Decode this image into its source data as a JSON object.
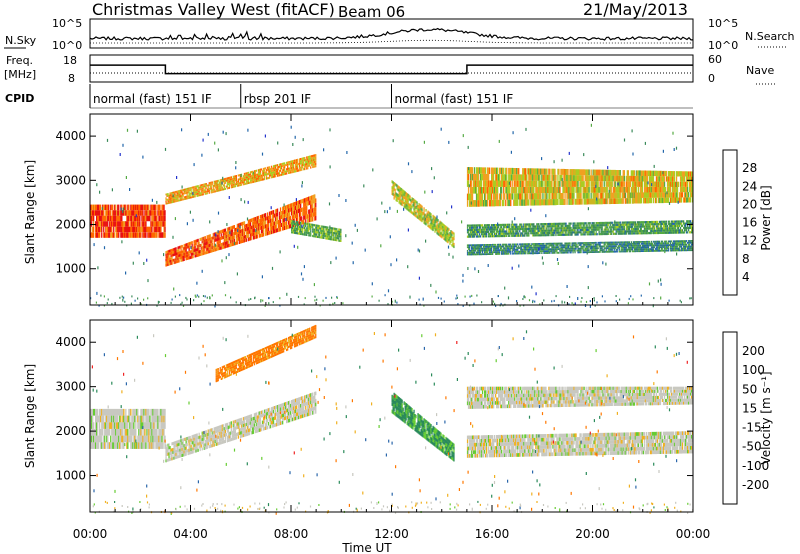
{
  "header": {
    "station": "Christmas Valley West (fitACF)",
    "beam": "Beam 06",
    "date": "21/May/2013"
  },
  "noise_panel": {
    "left_label": "N.Sky",
    "left_ticks": [
      "10^5",
      "10^0"
    ],
    "right_label": "N.Search",
    "right_ticks": [
      "10^5",
      "10^0"
    ]
  },
  "freq_panel": {
    "left_label_1": "Freq.",
    "left_label_2": "[MHz]",
    "left_ticks": [
      "18",
      "8"
    ],
    "right_label": "Nave",
    "right_ticks": [
      "60",
      "0"
    ]
  },
  "cpid": {
    "label": "CPID",
    "segments": [
      {
        "text": "normal (fast) 151 IF",
        "start_h": 0,
        "end_h": 6
      },
      {
        "text": "rbsp 201 IF",
        "start_h": 6,
        "end_h": 12
      },
      {
        "text": "normal (fast) 151 IF",
        "start_h": 12,
        "end_h": 24
      }
    ]
  },
  "power_panel": {
    "ylabel": "Slant Range [km]",
    "yticks": [
      "1000",
      "2000",
      "3000",
      "4000"
    ],
    "colorbar_label": "Power [dB]",
    "colorbar_ticks": [
      "4",
      "8",
      "12",
      "16",
      "20",
      "24",
      "28"
    ],
    "colors": [
      "#2233cc",
      "#2266aa",
      "#3a8a5a",
      "#55aa44",
      "#aacc22",
      "#f0a020",
      "#ff6600",
      "#e81010"
    ]
  },
  "velocity_panel": {
    "ylabel": "Slant Range [km]",
    "yticks": [
      "1000",
      "2000",
      "3000",
      "4000"
    ],
    "colorbar_label": "Velocity [m s⁻¹]",
    "colorbar_ticks": [
      "200",
      "100",
      "50",
      "15",
      "-15",
      "-50",
      "-100",
      "-200"
    ],
    "colors": [
      "#2233bb",
      "#2a66aa",
      "#2a8a5a",
      "#66cc33",
      "#c8c8c0",
      "#f0b020",
      "#ff7700",
      "#ee2222",
      "#cc0000"
    ]
  },
  "xaxis": {
    "label": "Time UT",
    "ticks": [
      "00:00",
      "04:00",
      "08:00",
      "12:00",
      "16:00",
      "20:00",
      "00:00"
    ]
  },
  "chart_data": {
    "type": "heatmap",
    "title": "Christmas Valley West (fitACF) Beam 06 21/May/2013",
    "xlabel": "Time UT",
    "ylabel": "Slant Range [km]",
    "xlim_hours": [
      0,
      24
    ],
    "ylim_km": [
      180,
      4500
    ],
    "frequency_mhz": [
      {
        "from_h": 0,
        "to_h": 3,
        "value": 15
      },
      {
        "from_h": 3,
        "to_h": 15,
        "value": 10
      },
      {
        "from_h": 15,
        "to_h": 24,
        "value": 15
      }
    ],
    "power_bands": [
      {
        "t": [
          0,
          3
        ],
        "r0": [
          1700,
          1700
        ],
        "r1": [
          2450,
          2450
        ],
        "db": 28
      },
      {
        "t": [
          3,
          9
        ],
        "r0": [
          1050,
          2100
        ],
        "r1": [
          1400,
          2700
        ],
        "db": 26
      },
      {
        "t": [
          3,
          9
        ],
        "r0": [
          2450,
          3300
        ],
        "r1": [
          2700,
          3600
        ],
        "db": 22
      },
      {
        "t": [
          8,
          10
        ],
        "r0": [
          1800,
          1600
        ],
        "r1": [
          2100,
          1900
        ],
        "db": 14
      },
      {
        "t": [
          12,
          14.5
        ],
        "r0": [
          2600,
          1450
        ],
        "r1": [
          3000,
          1800
        ],
        "db": 18
      },
      {
        "t": [
          15,
          24
        ],
        "r0": [
          2400,
          2500
        ],
        "r1": [
          3300,
          3200
        ],
        "db": 20
      },
      {
        "t": [
          15,
          24
        ],
        "r0": [
          1700,
          1800
        ],
        "r1": [
          2000,
          2100
        ],
        "db": 12
      },
      {
        "t": [
          15,
          24
        ],
        "r0": [
          1300,
          1400
        ],
        "r1": [
          1550,
          1650
        ],
        "db": 10
      }
    ],
    "velocity_bands": [
      {
        "t": [
          0,
          3
        ],
        "r0": [
          1600,
          1600
        ],
        "r1": [
          2500,
          2500
        ],
        "v": 0
      },
      {
        "t": [
          3,
          9
        ],
        "r0": [
          1300,
          2400
        ],
        "r1": [
          1700,
          2900
        ],
        "v": 0
      },
      {
        "t": [
          5,
          9
        ],
        "r0": [
          3100,
          4100
        ],
        "r1": [
          3400,
          4400
        ],
        "v": -60
      },
      {
        "t": [
          12,
          14.5
        ],
        "r0": [
          2400,
          1300
        ],
        "r1": [
          2900,
          1700
        ],
        "v": 40
      },
      {
        "t": [
          15,
          24
        ],
        "r0": [
          2500,
          2600
        ],
        "r1": [
          3000,
          3000
        ],
        "v": 0
      },
      {
        "t": [
          15,
          24
        ],
        "r0": [
          1400,
          1500
        ],
        "r1": [
          1900,
          2000
        ],
        "v": 0
      }
    ]
  }
}
